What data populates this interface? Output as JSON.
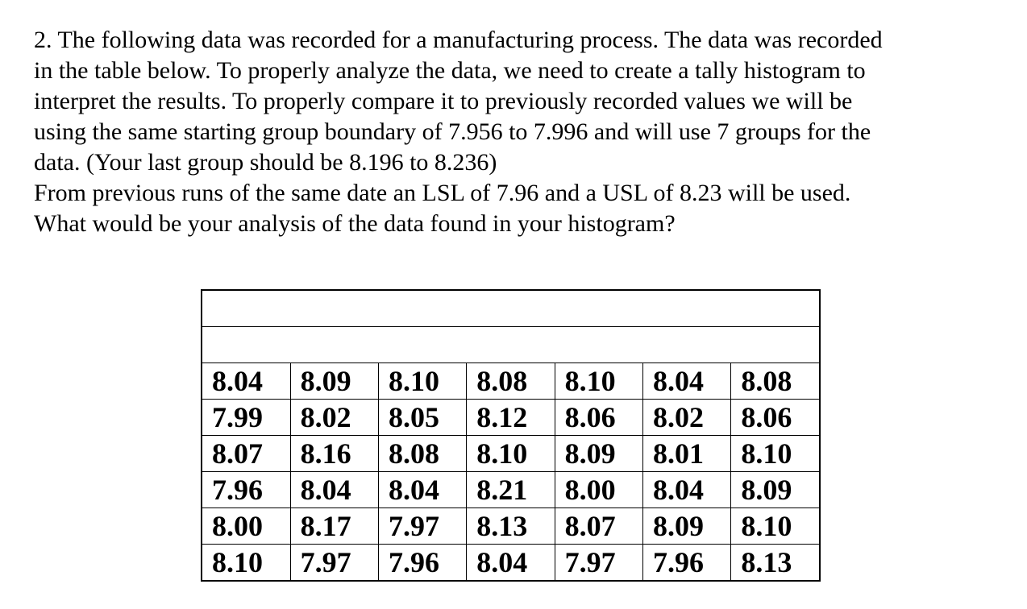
{
  "question": {
    "lines": [
      "2. The following data was recorded for a manufacturing process.  The data was recorded",
      "in the table below.  To properly analyze the data, we need to create a tally histogram to",
      "interpret the results.  To properly compare it to previously recorded values we will be",
      "using the same starting group boundary of 7.956 to 7.996 and will use 7 groups for the",
      "data. (Your last group should be 8.196 to 8.236)",
      "From previous runs of the same date an LSL of 7.96 and a USL of 8.23 will be used.",
      "What would be your analysis of the data found in your histogram?"
    ]
  },
  "table": {
    "header_rows": [
      "",
      ""
    ],
    "rows": [
      [
        "8.04",
        "8.09",
        "8.10",
        "8.08",
        "8.10",
        "8.04",
        "8.08"
      ],
      [
        "7.99",
        "8.02",
        "8.05",
        "8.12",
        "8.06",
        "8.02",
        "8.06"
      ],
      [
        "8.07",
        "8.16",
        "8.08",
        "8.10",
        "8.09",
        "8.01",
        "8.10"
      ],
      [
        "7.96",
        "8.04",
        "8.04",
        "8.21",
        "8.00",
        "8.04",
        "8.09"
      ],
      [
        "8.00",
        "8.17",
        "7.97",
        "8.13",
        "8.07",
        "8.09",
        "8.10"
      ],
      [
        "8.10",
        "7.97",
        "7.96",
        "8.04",
        "7.97",
        "7.96",
        "8.13"
      ]
    ]
  }
}
